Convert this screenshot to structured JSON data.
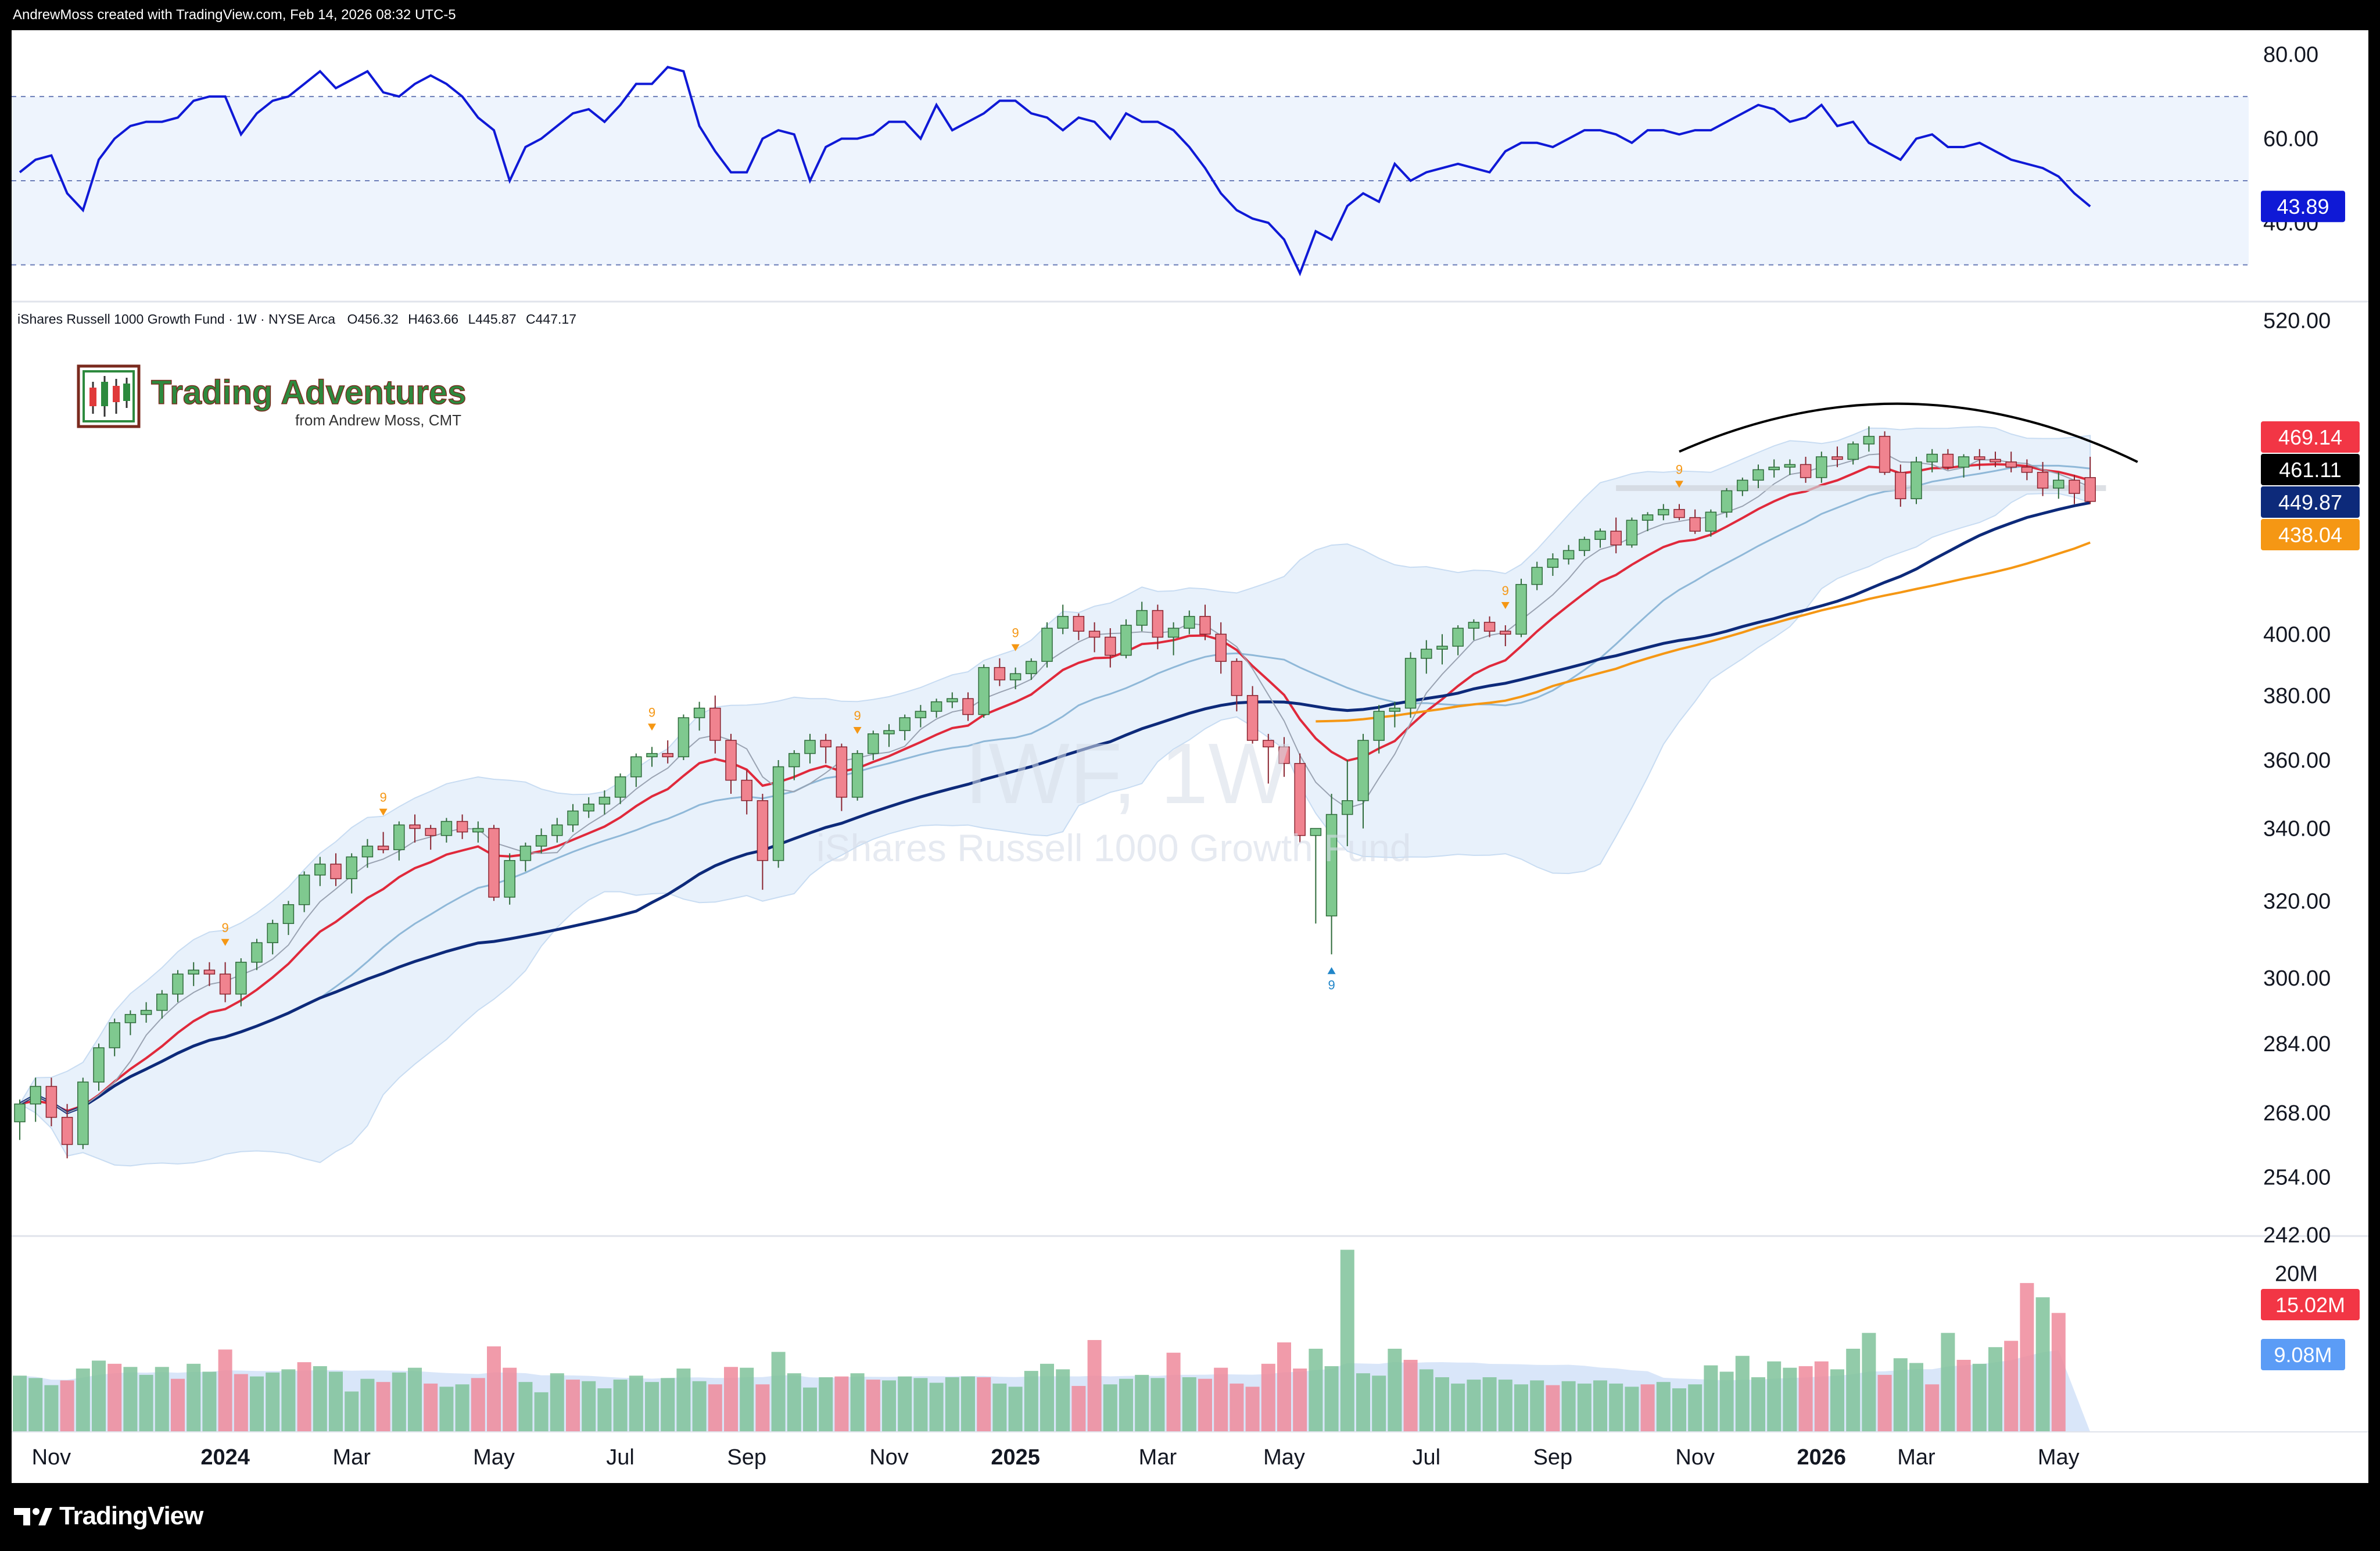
{
  "header": {
    "text": "AndrewMoss created with TradingView.com, Feb 14, 2026 08:32 UTC-5"
  },
  "footer": {
    "brand": "TradingView"
  },
  "logo": {
    "title": "Trading Adventures",
    "subtitle": "from Andrew Moss, CMT"
  },
  "symbol_info": {
    "name": "iShares Russell 1000 Growth Fund · 1W · NYSE Arca",
    "open": "O456.32",
    "high": "H463.66",
    "low": "L445.87",
    "close": "C447.17"
  },
  "watermark": {
    "ticker": "IWF, 1W",
    "name": "iShares Russell 1000 Growth Fund"
  },
  "colors": {
    "up": "#7fc98f",
    "up_border": "#2e6b3a",
    "down": "#f0838f",
    "down_border": "#8a2430",
    "rsi": "#0f19d6",
    "ema_red": "#e0293b",
    "sma_navy": "#0d2a7a",
    "sma_orange": "#f59714",
    "sma_light": "#8fb8d8",
    "band_fill": "#e8f1fb",
    "vol_up": "#7fc29a",
    "vol_down": "#ef8a9b",
    "td_orange": "#f59714",
    "td_blue": "#2186c9"
  },
  "chart_data": [
    {
      "type": "line",
      "name": "RSI",
      "ylim": [
        25,
        83
      ],
      "y_ticks": [
        "80.00",
        "60.00",
        "40.00"
      ],
      "overbought": 70,
      "oversold": 30,
      "midline": 50,
      "last_value_label": "43.89",
      "values": [
        52,
        55,
        56,
        47,
        43,
        55,
        60,
        63,
        64,
        64,
        65,
        69,
        70,
        70,
        61,
        66,
        69,
        70,
        73,
        76,
        72,
        74,
        76,
        71,
        70,
        73,
        75,
        73,
        70,
        65,
        62,
        50,
        58,
        60,
        63,
        66,
        67,
        64,
        68,
        73,
        73,
        77,
        76,
        63,
        57,
        52,
        52,
        60,
        62,
        61,
        50,
        58,
        60,
        60,
        61,
        64,
        64,
        60,
        68,
        62,
        64,
        66,
        69,
        69,
        66,
        65,
        62,
        65,
        64,
        60,
        66,
        64,
        64,
        62,
        58,
        53,
        47,
        43,
        41,
        40,
        36,
        28,
        38,
        36,
        44,
        47,
        45,
        54,
        50,
        52,
        53,
        54,
        53,
        52,
        57,
        59,
        59,
        58,
        60,
        62,
        62,
        61,
        59,
        62,
        62,
        61,
        62,
        62,
        64,
        66,
        68,
        67,
        64,
        65,
        68,
        63,
        64,
        59,
        57,
        55,
        60,
        61,
        58,
        58,
        59,
        57,
        55,
        54,
        53,
        51,
        47,
        43.89
      ]
    },
    {
      "type": "candlestick",
      "name": "iShares Russell 1000 Growth Fund",
      "scale": "log",
      "ylim": [
        240,
        525
      ],
      "y_ticks": [
        "520.00",
        "400.00",
        "380.00",
        "360.00",
        "340.00",
        "320.00",
        "300.00",
        "284.00",
        "268.00",
        "254.00",
        "242.00"
      ],
      "x_ticks": [
        "Nov",
        "2024",
        "Mar",
        "May",
        "Jul",
        "Sep",
        "Nov",
        "2025",
        "Mar",
        "May",
        "Jul",
        "Sep",
        "Nov",
        "2026",
        "Mar",
        "May"
      ],
      "price_labels": [
        {
          "value": "469.14",
          "color": "#f23645"
        },
        {
          "value": "461.11",
          "color": "#000000"
        },
        {
          "value": "449.87",
          "color": "#0d2a7a"
        },
        {
          "value": "438.04",
          "color": "#f59714"
        }
      ],
      "candles": [
        [
          266,
          271,
          262,
          270
        ],
        [
          270,
          276,
          266,
          274
        ],
        [
          274,
          276,
          265,
          267
        ],
        [
          267,
          270,
          258,
          261
        ],
        [
          261,
          276,
          260,
          275
        ],
        [
          275,
          284,
          273,
          283
        ],
        [
          283,
          290,
          281,
          289
        ],
        [
          289,
          292,
          286,
          291
        ],
        [
          291,
          294,
          289,
          292
        ],
        [
          292,
          297,
          290,
          296
        ],
        [
          296,
          302,
          294,
          301
        ],
        [
          301,
          304,
          298,
          302
        ],
        [
          302,
          304,
          298,
          301
        ],
        [
          301,
          304,
          294,
          296
        ],
        [
          296,
          305,
          293,
          304
        ],
        [
          304,
          310,
          302,
          309
        ],
        [
          309,
          315,
          306,
          314
        ],
        [
          314,
          320,
          311,
          319
        ],
        [
          319,
          328,
          317,
          327
        ],
        [
          327,
          332,
          324,
          330
        ],
        [
          330,
          333,
          324,
          326
        ],
        [
          326,
          333,
          322,
          332
        ],
        [
          332,
          337,
          329,
          335
        ],
        [
          335,
          339,
          333,
          334
        ],
        [
          334,
          342,
          331,
          341
        ],
        [
          341,
          344,
          336,
          340
        ],
        [
          340,
          341,
          334,
          338
        ],
        [
          338,
          343,
          336,
          342
        ],
        [
          342,
          344,
          337,
          339
        ],
        [
          339,
          342,
          336,
          340
        ],
        [
          340,
          341,
          320,
          321
        ],
        [
          321,
          333,
          319,
          331
        ],
        [
          331,
          336,
          328,
          335
        ],
        [
          335,
          340,
          333,
          338
        ],
        [
          338,
          343,
          336,
          341
        ],
        [
          341,
          347,
          339,
          345
        ],
        [
          345,
          349,
          343,
          347
        ],
        [
          347,
          351,
          344,
          349
        ],
        [
          349,
          356,
          347,
          355
        ],
        [
          355,
          362,
          352,
          361
        ],
        [
          361,
          364,
          358,
          362
        ],
        [
          362,
          366,
          359,
          361
        ],
        [
          361,
          374,
          360,
          373
        ],
        [
          373,
          378,
          369,
          376
        ],
        [
          376,
          380,
          362,
          366
        ],
        [
          366,
          368,
          350,
          354
        ],
        [
          354,
          357,
          344,
          348
        ],
        [
          348,
          350,
          323,
          331
        ],
        [
          331,
          360,
          329,
          358
        ],
        [
          358,
          363,
          354,
          362
        ],
        [
          362,
          368,
          359,
          366
        ],
        [
          366,
          368,
          359,
          364
        ],
        [
          364,
          365,
          345,
          349
        ],
        [
          349,
          363,
          348,
          362
        ],
        [
          362,
          369,
          360,
          368
        ],
        [
          368,
          371,
          364,
          369
        ],
        [
          369,
          374,
          366,
          373
        ],
        [
          373,
          377,
          370,
          375
        ],
        [
          375,
          379,
          373,
          378
        ],
        [
          378,
          381,
          376,
          379
        ],
        [
          379,
          381,
          372,
          374
        ],
        [
          374,
          390,
          373,
          389
        ],
        [
          389,
          392,
          383,
          385
        ],
        [
          385,
          389,
          382,
          387
        ],
        [
          387,
          392,
          385,
          391
        ],
        [
          391,
          404,
          389,
          402
        ],
        [
          402,
          410,
          400,
          406
        ],
        [
          406,
          407,
          398,
          401
        ],
        [
          401,
          404,
          394,
          399
        ],
        [
          399,
          402,
          389,
          393
        ],
        [
          393,
          405,
          392,
          403
        ],
        [
          403,
          411,
          401,
          408
        ],
        [
          408,
          410,
          395,
          399
        ],
        [
          399,
          404,
          393,
          402
        ],
        [
          402,
          408,
          400,
          406
        ],
        [
          406,
          410,
          398,
          400
        ],
        [
          400,
          404,
          387,
          391
        ],
        [
          391,
          392,
          375,
          380
        ],
        [
          380,
          383,
          365,
          366
        ],
        [
          366,
          368,
          353,
          364
        ],
        [
          364,
          367,
          355,
          359
        ],
        [
          359,
          362,
          336,
          338
        ],
        [
          338,
          340,
          314,
          340
        ],
        [
          316,
          350,
          306,
          344
        ],
        [
          344,
          360,
          335,
          348
        ],
        [
          348,
          368,
          340,
          366
        ],
        [
          366,
          377,
          362,
          375
        ],
        [
          375,
          378,
          370,
          376
        ],
        [
          376,
          394,
          373,
          392
        ],
        [
          392,
          398,
          387,
          395
        ],
        [
          395,
          400,
          390,
          396
        ],
        [
          396,
          403,
          393,
          402
        ],
        [
          402,
          405,
          398,
          404
        ],
        [
          404,
          406,
          399,
          401
        ],
        [
          401,
          403,
          396,
          400
        ],
        [
          400,
          419,
          399,
          417
        ],
        [
          417,
          425,
          415,
          423
        ],
        [
          423,
          428,
          420,
          426
        ],
        [
          426,
          431,
          424,
          429
        ],
        [
          429,
          434,
          427,
          433
        ],
        [
          433,
          437,
          430,
          436
        ],
        [
          436,
          441,
          428,
          431
        ],
        [
          431,
          441,
          430,
          440
        ],
        [
          440,
          443,
          436,
          442
        ],
        [
          442,
          446,
          440,
          444
        ],
        [
          444,
          446,
          440,
          441
        ],
        [
          441,
          444,
          435,
          436
        ],
        [
          436,
          444,
          434,
          443
        ],
        [
          443,
          452,
          441,
          451
        ],
        [
          451,
          456,
          449,
          455
        ],
        [
          455,
          461,
          452,
          459
        ],
        [
          459,
          463,
          456,
          460
        ],
        [
          460,
          463,
          457,
          461
        ],
        [
          461,
          464,
          454,
          456
        ],
        [
          456,
          466,
          454,
          464
        ],
        [
          464,
          468,
          460,
          463
        ],
        [
          463,
          470,
          461,
          469
        ],
        [
          469,
          476,
          466,
          472
        ],
        [
          472,
          474,
          457,
          458
        ],
        [
          458,
          461,
          445,
          448
        ],
        [
          448,
          464,
          446,
          462
        ],
        [
          462,
          467,
          458,
          465
        ],
        [
          465,
          467,
          459,
          460
        ],
        [
          460,
          465,
          456,
          464
        ],
        [
          464,
          467,
          459,
          463
        ],
        [
          463,
          466,
          460,
          462
        ],
        [
          462,
          466,
          458,
          460
        ],
        [
          460,
          463,
          455,
          458
        ],
        [
          458,
          462,
          449,
          452
        ],
        [
          452,
          458,
          448,
          455
        ],
        [
          455,
          457,
          446,
          450
        ],
        [
          456,
          464,
          446,
          447
        ]
      ],
      "td_setup_marks": [
        {
          "label": "9",
          "index": 13,
          "direction": "sell"
        },
        {
          "label": "9",
          "index": 23,
          "direction": "sell"
        },
        {
          "label": "9",
          "index": 40,
          "direction": "sell"
        },
        {
          "label": "9",
          "index": 53,
          "direction": "sell"
        },
        {
          "label": "9",
          "index": 63,
          "direction": "sell"
        },
        {
          "label": "9",
          "index": 83,
          "direction": "buy"
        },
        {
          "label": "9",
          "index": 94,
          "direction": "sell"
        },
        {
          "label": "9",
          "index": 105,
          "direction": "sell"
        }
      ]
    },
    {
      "type": "bar",
      "name": "Volume",
      "ylim": [
        0,
        24
      ],
      "y_ticks": [
        "20M"
      ],
      "value_labels": [
        {
          "value": "15.02M",
          "color": "#f23645"
        },
        {
          "value": "9.08M",
          "color": "#5b9cf6"
        }
      ],
      "values": [
        7.1,
        6.8,
        5.9,
        6.5,
        8.0,
        9.0,
        8.6,
        8.2,
        7.2,
        8.2,
        6.7,
        8.6,
        7.6,
        10.4,
        7.3,
        7.0,
        7.5,
        7.9,
        8.8,
        8.3,
        7.6,
        5.1,
        6.7,
        6.3,
        7.5,
        8.1,
        6.1,
        5.7,
        6.0,
        6.8,
        10.8,
        8.1,
        6.3,
        5.0,
        7.4,
        6.6,
        6.4,
        5.5,
        6.6,
        7.1,
        6.3,
        6.8,
        8.0,
        6.4,
        6.0,
        8.2,
        8.1,
        6.0,
        10.1,
        7.4,
        5.6,
        6.9,
        7.0,
        7.4,
        6.6,
        6.5,
        7.0,
        6.8,
        6.2,
        6.9,
        7.0,
        6.9,
        6.1,
        5.7,
        7.7,
        8.6,
        7.9,
        5.8,
        11.6,
        6.0,
        6.7,
        7.2,
        6.8,
        10.0,
        6.9,
        6.7,
        8.1,
        6.1,
        5.7,
        8.6,
        11.3,
        8.0,
        10.5,
        8.3,
        23.0,
        7.4,
        7.1,
        10.5,
        9.1,
        7.9,
        6.9,
        6.1,
        6.6,
        6.9,
        6.6,
        6.0,
        6.5,
        5.9,
        6.4,
        6.1,
        6.5,
        6.1,
        5.7,
        6.0,
        6.3,
        5.5,
        6.0,
        8.4,
        7.6,
        9.6,
        6.9,
        8.9,
        8.1,
        8.3,
        8.9,
        7.9,
        10.5,
        12.5,
        7.2,
        9.3,
        8.7,
        6.0,
        12.5,
        9.1,
        8.6,
        10.7,
        11.5,
        18.8,
        17.0,
        15.02
      ],
      "down_indices": [
        3,
        6,
        10,
        13,
        14,
        18,
        23,
        26,
        29,
        30,
        31,
        35,
        44,
        45,
        47,
        52,
        54,
        61,
        67,
        68,
        73,
        75,
        76,
        77,
        78,
        79,
        80,
        81,
        88,
        97,
        103,
        113,
        114,
        118,
        121,
        123,
        126,
        127,
        129,
        130,
        131
      ]
    }
  ]
}
